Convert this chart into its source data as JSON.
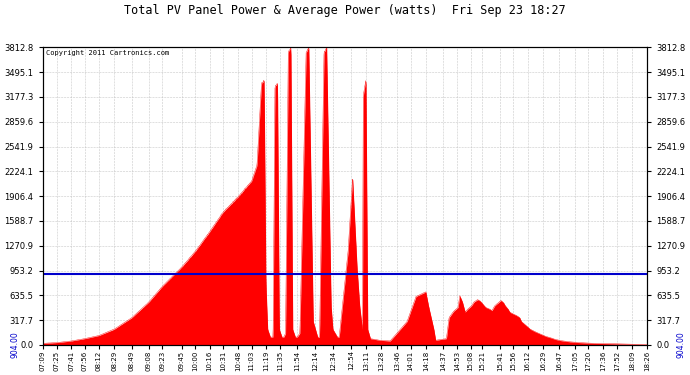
{
  "title": "Total PV Panel Power & Average Power (watts)  Fri Sep 23 18:27",
  "copyright": "Copyright 2011 Cartronics.com",
  "avg_power": 904.0,
  "y_max": 3812.8,
  "y_ticks": [
    0.0,
    317.7,
    635.5,
    953.2,
    1270.9,
    1588.7,
    1906.4,
    2224.1,
    2541.9,
    2859.6,
    3177.3,
    3495.1,
    3812.8
  ],
  "fill_color": "#FF0000",
  "line_color": "#FF0000",
  "avg_line_color": "#0000CC",
  "background_color": "#FFFFFF",
  "grid_color": "#BBBBBB",
  "x_labels": [
    "07:09",
    "07:25",
    "07:41",
    "07:56",
    "08:12",
    "08:29",
    "08:49",
    "09:08",
    "09:23",
    "09:45",
    "10:00",
    "10:16",
    "10:31",
    "10:48",
    "11:03",
    "11:19",
    "11:35",
    "11:54",
    "12:14",
    "12:34",
    "12:54",
    "13:11",
    "13:28",
    "13:46",
    "14:01",
    "14:18",
    "14:37",
    "14:53",
    "15:08",
    "15:21",
    "15:41",
    "15:56",
    "16:12",
    "16:29",
    "16:47",
    "17:05",
    "17:20",
    "17:36",
    "17:52",
    "18:09",
    "18:26"
  ]
}
